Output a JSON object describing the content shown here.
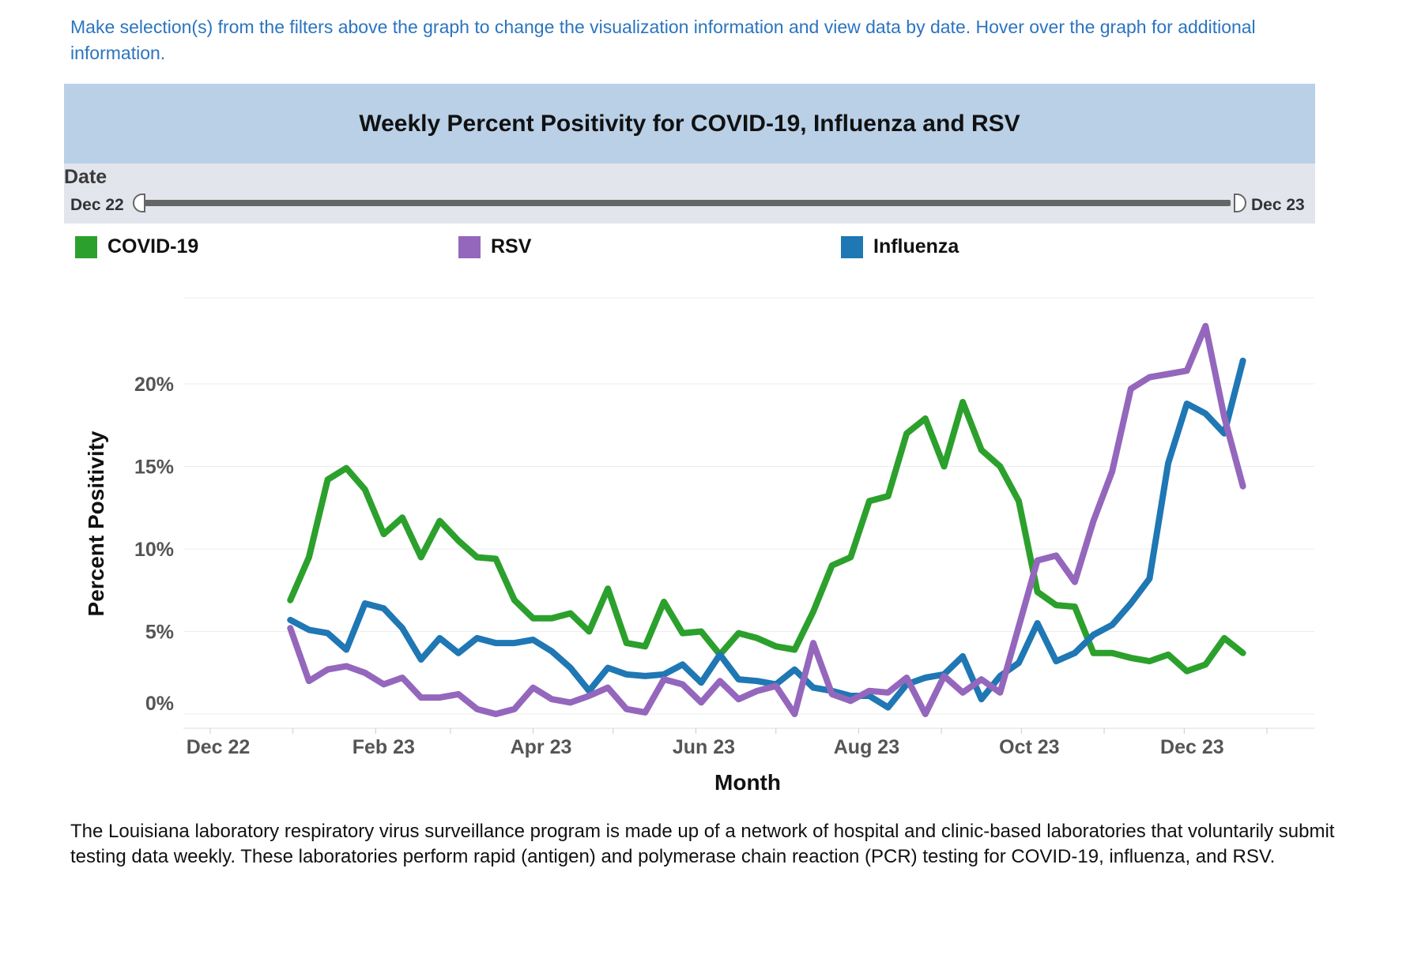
{
  "intro_text": "Make selection(s) from the filters above the graph to change the visualization information and view data by date. Hover over the graph for additional information.",
  "date_filter": {
    "label": "Date",
    "start_label": "Dec 22",
    "end_label": "Dec 23"
  },
  "colors": {
    "covid": "#2ca02c",
    "rsv": "#9467bd",
    "influenza": "#1f77b4",
    "title_band": "#b9d0e7",
    "intro_text": "#2b74c0"
  },
  "footer_text": "The Louisiana laboratory respiratory virus surveillance program is made up of a network of hospital and clinic-based laboratories that voluntarily submit testing data weekly. These laboratories perform rapid (antigen) and polymerase chain reaction (PCR) testing for COVID-19, influenza, and RSV.",
  "chart_data": {
    "type": "line",
    "title": "Weekly Percent Positivity for COVID-19, Influenza and RSV",
    "xlabel": "Month",
    "ylabel": "Percent Positivity",
    "x_tick_labels": [
      "Dec 22",
      "Feb 23",
      "Apr 23",
      "Jun 23",
      "Aug 23",
      "Oct 23",
      "Dec 23"
    ],
    "y_tick_labels": [
      "0%",
      "5%",
      "10%",
      "15%",
      "20%"
    ],
    "ylim": [
      0,
      25
    ],
    "grid": true,
    "legend_position": "top",
    "series": [
      {
        "name": "COVID-19",
        "color": "#2ca02c",
        "points": [
          [
            "2022-12-31",
            6.9
          ],
          [
            "2023-01-07",
            9.5
          ],
          [
            "2023-01-14",
            14.2
          ],
          [
            "2023-01-21",
            14.9
          ],
          [
            "2023-01-28",
            13.6
          ],
          [
            "2023-02-04",
            10.9
          ],
          [
            "2023-02-11",
            11.9
          ],
          [
            "2023-02-18",
            9.5
          ],
          [
            "2023-02-25",
            11.7
          ],
          [
            "2023-03-04",
            10.5
          ],
          [
            "2023-03-11",
            9.5
          ],
          [
            "2023-03-18",
            9.4
          ],
          [
            "2023-03-25",
            6.9
          ],
          [
            "2023-04-01",
            5.8
          ],
          [
            "2023-04-08",
            5.8
          ],
          [
            "2023-04-15",
            6.1
          ],
          [
            "2023-04-22",
            5.0
          ],
          [
            "2023-04-29",
            7.6
          ],
          [
            "2023-05-06",
            4.3
          ],
          [
            "2023-05-13",
            4.1
          ],
          [
            "2023-05-20",
            6.8
          ],
          [
            "2023-05-27",
            4.9
          ],
          [
            "2023-06-03",
            5.0
          ],
          [
            "2023-06-10",
            3.6
          ],
          [
            "2023-06-17",
            4.9
          ],
          [
            "2023-06-24",
            4.6
          ],
          [
            "2023-07-01",
            4.1
          ],
          [
            "2023-07-08",
            3.9
          ],
          [
            "2023-07-15",
            6.2
          ],
          [
            "2023-07-22",
            9.0
          ],
          [
            "2023-07-29",
            9.5
          ],
          [
            "2023-08-05",
            12.9
          ],
          [
            "2023-08-12",
            13.2
          ],
          [
            "2023-08-19",
            17.0
          ],
          [
            "2023-08-26",
            17.9
          ],
          [
            "2023-09-02",
            15.0
          ],
          [
            "2023-09-09",
            18.9
          ],
          [
            "2023-09-16",
            16.0
          ],
          [
            "2023-09-23",
            15.0
          ],
          [
            "2023-09-30",
            12.9
          ],
          [
            "2023-10-07",
            7.4
          ],
          [
            "2023-10-14",
            6.6
          ],
          [
            "2023-10-21",
            6.5
          ],
          [
            "2023-10-28",
            3.7
          ],
          [
            "2023-11-04",
            3.7
          ],
          [
            "2023-11-11",
            3.4
          ],
          [
            "2023-11-18",
            3.2
          ],
          [
            "2023-11-25",
            3.6
          ],
          [
            "2023-12-02",
            2.6
          ],
          [
            "2023-12-09",
            3.0
          ],
          [
            "2023-12-16",
            4.6
          ],
          [
            "2023-12-23",
            3.7
          ]
        ]
      },
      {
        "name": "RSV",
        "color": "#9467bd",
        "points": [
          [
            "2022-12-31",
            5.2
          ],
          [
            "2023-01-07",
            2.0
          ],
          [
            "2023-01-14",
            2.7
          ],
          [
            "2023-01-21",
            2.9
          ],
          [
            "2023-01-28",
            2.5
          ],
          [
            "2023-02-04",
            1.8
          ],
          [
            "2023-02-11",
            2.2
          ],
          [
            "2023-02-18",
            1.0
          ],
          [
            "2023-02-25",
            1.0
          ],
          [
            "2023-03-04",
            1.2
          ],
          [
            "2023-03-11",
            0.3
          ],
          [
            "2023-03-18",
            0.0
          ],
          [
            "2023-03-25",
            0.3
          ],
          [
            "2023-04-01",
            1.6
          ],
          [
            "2023-04-08",
            0.9
          ],
          [
            "2023-04-15",
            0.7
          ],
          [
            "2023-04-22",
            1.1
          ],
          [
            "2023-04-29",
            1.6
          ],
          [
            "2023-05-06",
            0.3
          ],
          [
            "2023-05-13",
            0.1
          ],
          [
            "2023-05-20",
            2.1
          ],
          [
            "2023-05-27",
            1.8
          ],
          [
            "2023-06-03",
            0.7
          ],
          [
            "2023-06-10",
            2.0
          ],
          [
            "2023-06-17",
            0.9
          ],
          [
            "2023-06-24",
            1.4
          ],
          [
            "2023-07-01",
            1.7
          ],
          [
            "2023-07-08",
            0.0
          ],
          [
            "2023-07-15",
            4.3
          ],
          [
            "2023-07-22",
            1.2
          ],
          [
            "2023-07-29",
            0.8
          ],
          [
            "2023-08-05",
            1.4
          ],
          [
            "2023-08-12",
            1.3
          ],
          [
            "2023-08-19",
            2.2
          ],
          [
            "2023-08-26",
            0.0
          ],
          [
            "2023-09-02",
            2.3
          ],
          [
            "2023-09-09",
            1.3
          ],
          [
            "2023-09-16",
            2.1
          ],
          [
            "2023-09-23",
            1.3
          ],
          [
            "2023-09-30",
            5.3
          ],
          [
            "2023-10-07",
            9.3
          ],
          [
            "2023-10-14",
            9.6
          ],
          [
            "2023-10-21",
            8.0
          ],
          [
            "2023-10-28",
            11.7
          ],
          [
            "2023-11-04",
            14.7
          ],
          [
            "2023-11-11",
            19.7
          ],
          [
            "2023-11-18",
            20.4
          ],
          [
            "2023-11-25",
            20.6
          ],
          [
            "2023-12-02",
            20.8
          ],
          [
            "2023-12-09",
            23.5
          ],
          [
            "2023-12-16",
            18.0
          ],
          [
            "2023-12-23",
            13.8
          ]
        ]
      },
      {
        "name": "Influenza",
        "color": "#1f77b4",
        "points": [
          [
            "2022-12-31",
            5.7
          ],
          [
            "2023-01-07",
            5.1
          ],
          [
            "2023-01-14",
            4.9
          ],
          [
            "2023-01-21",
            3.9
          ],
          [
            "2023-01-28",
            6.7
          ],
          [
            "2023-02-04",
            6.4
          ],
          [
            "2023-02-11",
            5.2
          ],
          [
            "2023-02-18",
            3.3
          ],
          [
            "2023-02-25",
            4.6
          ],
          [
            "2023-03-04",
            3.7
          ],
          [
            "2023-03-11",
            4.6
          ],
          [
            "2023-03-18",
            4.3
          ],
          [
            "2023-03-25",
            4.3
          ],
          [
            "2023-04-01",
            4.5
          ],
          [
            "2023-04-08",
            3.8
          ],
          [
            "2023-04-15",
            2.8
          ],
          [
            "2023-04-22",
            1.4
          ],
          [
            "2023-04-29",
            2.8
          ],
          [
            "2023-05-06",
            2.4
          ],
          [
            "2023-05-13",
            2.3
          ],
          [
            "2023-05-20",
            2.4
          ],
          [
            "2023-05-27",
            3.0
          ],
          [
            "2023-06-03",
            1.9
          ],
          [
            "2023-06-10",
            3.6
          ],
          [
            "2023-06-17",
            2.1
          ],
          [
            "2023-06-24",
            2.0
          ],
          [
            "2023-07-01",
            1.8
          ],
          [
            "2023-07-08",
            2.7
          ],
          [
            "2023-07-15",
            1.6
          ],
          [
            "2023-07-22",
            1.4
          ],
          [
            "2023-07-29",
            1.1
          ],
          [
            "2023-08-05",
            1.1
          ],
          [
            "2023-08-12",
            0.4
          ],
          [
            "2023-08-19",
            1.8
          ],
          [
            "2023-08-26",
            2.2
          ],
          [
            "2023-09-02",
            2.4
          ],
          [
            "2023-09-09",
            3.5
          ],
          [
            "2023-09-16",
            0.9
          ],
          [
            "2023-09-23",
            2.3
          ],
          [
            "2023-09-30",
            3.1
          ],
          [
            "2023-10-07",
            5.5
          ],
          [
            "2023-10-14",
            3.2
          ],
          [
            "2023-10-21",
            3.7
          ],
          [
            "2023-10-28",
            4.8
          ],
          [
            "2023-11-04",
            5.4
          ],
          [
            "2023-11-11",
            6.7
          ],
          [
            "2023-11-18",
            8.2
          ],
          [
            "2023-11-25",
            15.2
          ],
          [
            "2023-12-02",
            18.8
          ],
          [
            "2023-12-09",
            18.2
          ],
          [
            "2023-12-16",
            17.0
          ],
          [
            "2023-12-23",
            21.4
          ]
        ]
      }
    ]
  }
}
